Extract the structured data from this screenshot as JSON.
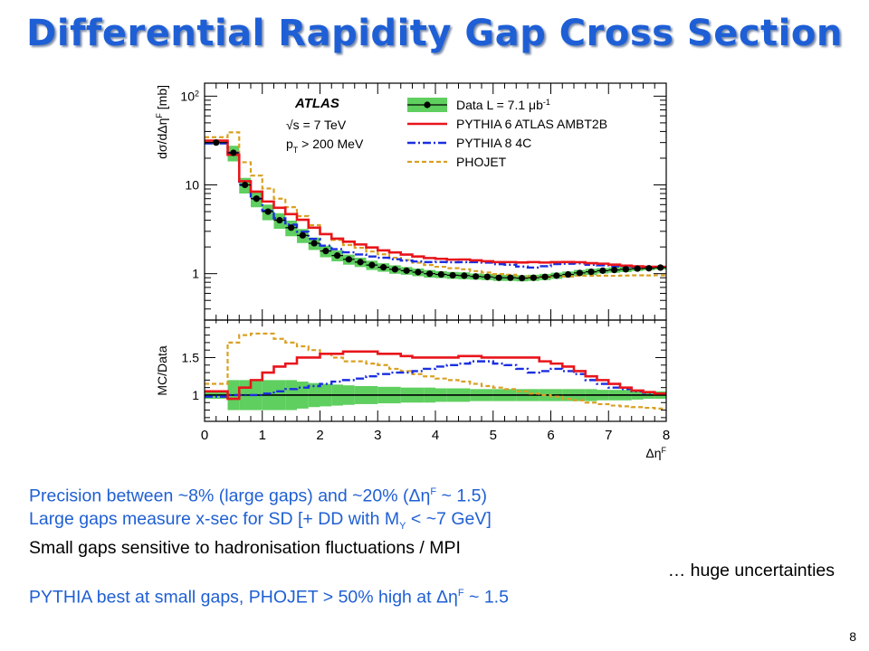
{
  "title": "Differential Rapidity Gap Cross Section",
  "page_number": "8",
  "bullets": [
    {
      "color": "#1f5fd3",
      "pre": "Precision between ~8% (large gaps) and ~20% (Δη",
      "sup": "F",
      "post": " ~ 1.5)"
    },
    {
      "color": "#1f5fd3",
      "pre": "Large gaps measure x-sec for SD [+ DD with M",
      "sub": "Y",
      "post": " < ~7 GeV]"
    },
    {
      "color": "#000000",
      "pre": "Small gaps sensitive to hadronisation fluctuations / MPI"
    },
    {
      "color": "#000000",
      "pre": "… huge uncertainties",
      "align": "right"
    },
    {
      "color": "#1f5fd3",
      "pre": "PYTHIA best at small gaps, PHOJET > 50% high at Δη",
      "sup": "F",
      "post": " ~ 1.5"
    }
  ],
  "chart_data": {
    "type": "line",
    "experiment_label": "ATLAS",
    "energy_label": "√s = 7 TeV",
    "pt_label": "p",
    "pt_sub": "T",
    "pt_cut": " > 200 MeV",
    "xlabel": "Δη",
    "xlabel_sup": "F",
    "ylabel": "dσ/dΔη",
    "ylabel_sup": "F",
    "ylabel_unit": " [mb]",
    "ratio_ylabel": "MC/Data",
    "xlim": [
      0,
      8
    ],
    "ylim_log": [
      0.3,
      140
    ],
    "ratio_ylim": [
      0.65,
      2.0
    ],
    "xticks": [
      "0",
      "1",
      "2",
      "3",
      "4",
      "5",
      "6",
      "7",
      "8"
    ],
    "yticks_top": [
      {
        "v": 1,
        "label": "1"
      },
      {
        "v": 10,
        "label": "10"
      },
      {
        "v": 100,
        "label": "10",
        "sup": "2"
      }
    ],
    "yticks_ratio": [
      {
        "v": 1,
        "label": "1"
      },
      {
        "v": 1.5,
        "label": "1.5"
      }
    ],
    "bin_edges": [
      0,
      0.4,
      0.6,
      0.8,
      1.0,
      1.2,
      1.4,
      1.6,
      1.8,
      2.0,
      2.2,
      2.4,
      2.6,
      2.8,
      3.0,
      3.2,
      3.4,
      3.6,
      3.8,
      4.0,
      4.2,
      4.4,
      4.6,
      4.8,
      5.0,
      5.2,
      5.4,
      5.6,
      5.8,
      6.0,
      6.2,
      6.4,
      6.6,
      6.8,
      7.0,
      7.2,
      7.4,
      7.6,
      7.8,
      8.0
    ],
    "legend": [
      {
        "key": "data",
        "label": "Data L = 7.1 μb",
        "sup": "-1"
      },
      {
        "key": "pythia6",
        "label": "PYTHIA 6 ATLAS AMBT2B"
      },
      {
        "key": "pythia8",
        "label": "PYTHIA 8 4C"
      },
      {
        "key": "phojet",
        "label": "PHOJET"
      }
    ],
    "colors": {
      "data": "#000000",
      "band": "#5fcf5f",
      "pythia6": "#e8151b",
      "pythia8": "#1a2ee0",
      "phojet": "#d9a023"
    },
    "data": [
      30,
      23,
      10,
      7,
      5,
      4,
      3.3,
      2.7,
      2.2,
      1.8,
      1.6,
      1.45,
      1.35,
      1.25,
      1.18,
      1.12,
      1.08,
      1.04,
      1.0,
      0.98,
      0.96,
      0.95,
      0.93,
      0.92,
      0.9,
      0.9,
      0.89,
      0.9,
      0.92,
      0.95,
      0.98,
      1.02,
      1.05,
      1.08,
      1.1,
      1.12,
      1.14,
      1.15,
      1.17
    ],
    "data_err": [
      0.05,
      0.2,
      0.2,
      0.2,
      0.2,
      0.2,
      0.2,
      0.18,
      0.16,
      0.15,
      0.14,
      0.13,
      0.12,
      0.12,
      0.11,
      0.11,
      0.1,
      0.1,
      0.1,
      0.09,
      0.09,
      0.09,
      0.08,
      0.08,
      0.08,
      0.08,
      0.08,
      0.08,
      0.08,
      0.08,
      0.08,
      0.08,
      0.08,
      0.07,
      0.07,
      0.07,
      0.06,
      0.05,
      0.05
    ],
    "ratios": {
      "pythia6": [
        1.05,
        0.95,
        1.1,
        1.2,
        1.3,
        1.38,
        1.42,
        1.5,
        1.5,
        1.55,
        1.55,
        1.58,
        1.58,
        1.58,
        1.55,
        1.55,
        1.52,
        1.5,
        1.5,
        1.5,
        1.5,
        1.52,
        1.52,
        1.5,
        1.5,
        1.5,
        1.5,
        1.5,
        1.45,
        1.42,
        1.38,
        1.32,
        1.25,
        1.2,
        1.15,
        1.1,
        1.06,
        1.04,
        1.02
      ],
      "pythia8": [
        0.98,
        1.0,
        1.0,
        1.0,
        1.02,
        1.05,
        1.08,
        1.1,
        1.12,
        1.15,
        1.18,
        1.2,
        1.22,
        1.25,
        1.28,
        1.3,
        1.3,
        1.32,
        1.35,
        1.38,
        1.4,
        1.42,
        1.45,
        1.45,
        1.42,
        1.4,
        1.35,
        1.3,
        1.32,
        1.35,
        1.32,
        1.28,
        1.2,
        1.15,
        1.1,
        1.08,
        1.05,
        1.03,
        1.02
      ],
      "phojet": [
        1.15,
        1.7,
        1.8,
        1.82,
        1.82,
        1.75,
        1.7,
        1.65,
        1.6,
        1.55,
        1.5,
        1.45,
        1.45,
        1.42,
        1.4,
        1.35,
        1.32,
        1.28,
        1.25,
        1.22,
        1.2,
        1.18,
        1.15,
        1.12,
        1.1,
        1.08,
        1.05,
        1.02,
        1.0,
        0.98,
        0.95,
        0.93,
        0.9,
        0.88,
        0.86,
        0.85,
        0.84,
        0.83,
        0.82
      ]
    }
  }
}
